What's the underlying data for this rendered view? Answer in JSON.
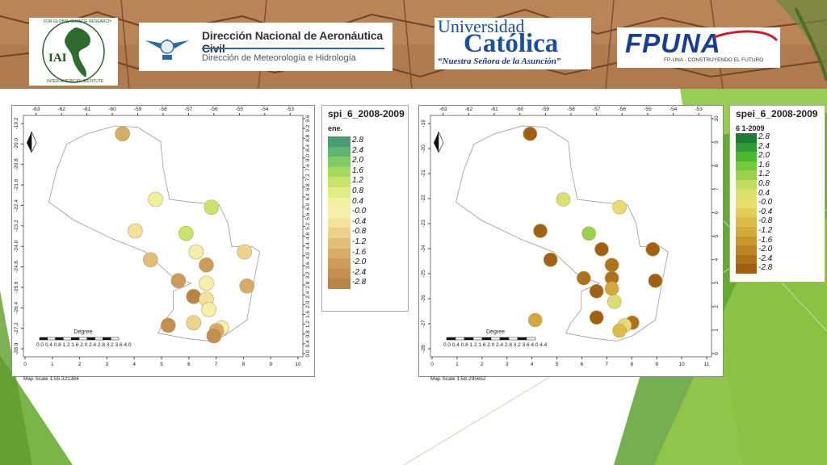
{
  "banner": {
    "logos": [
      {
        "name": "IAI",
        "lines": [
          "IAI",
          "FOR GLOBAL CHANGE RESEARCH",
          "INTER-AMERICAN INSTITUTE"
        ]
      },
      {
        "name": "DINAC"
      },
      {
        "name": "Universidad Católica"
      },
      {
        "name": "FP-UNA"
      }
    ],
    "dinac_title": "Dirección Nacional de Aeronáutica Civil",
    "dinac_subtitle": "Dirección de Meteorología e Hidrología",
    "uc_line1": "Universidad",
    "uc_line2": "Católica",
    "uc_line3": "“Nuestra Señora de la Asunción”",
    "fpuna_logo": "FPUNA",
    "fpuna_tagline": "FP-UNA - CONSTRUYENDO EL FUTURO"
  },
  "maps": [
    {
      "id": "spi",
      "x_ticks_top": [
        "-63",
        "-62",
        "-61",
        "-60",
        "-59",
        "-58",
        "-57",
        "-56",
        "-55",
        "-54",
        "-53"
      ],
      "x_ticks_bottom": [
        "0",
        "1",
        "2",
        "3",
        "4",
        "5",
        "6",
        "7",
        "8",
        "9",
        "10"
      ],
      "y_ticks_left": [
        "-19.2",
        "-20.0",
        "-20.8",
        "-21.6",
        "-22.4",
        "-23.2",
        "-24.0",
        "-24.8",
        "-25.6",
        "-26.4",
        "-27.2",
        "-28.0"
      ],
      "y_ticks_right": [
        "9.6",
        "9.2",
        "8.8",
        "8.4",
        "8.0",
        "7.6",
        "7.2",
        "6.8",
        "6.4",
        "6.0",
        "5.6",
        "5.2",
        "4.8",
        "4.4",
        "4.0",
        "3.6",
        "3.2",
        "2.8",
        "2.4",
        "2.0",
        "1.6",
        "1.2",
        "0.8",
        "0.4",
        "0.0"
      ],
      "scale_label": "Degree",
      "scale_ticks": "0.0 0.4 0.8 1.2 1.6 2.0 2.4 2.8 3.2 3.6 4.0",
      "map_scale": "Map Scale 1:55.321384",
      "stations": [
        {
          "lon": -59.7,
          "lat": -19.6,
          "v": -1.8
        },
        {
          "lon": -58.4,
          "lat": -22.1,
          "v": 0.2
        },
        {
          "lon": -56.2,
          "lat": -22.4,
          "v": 1.0
        },
        {
          "lon": -59.2,
          "lat": -23.3,
          "v": -0.5
        },
        {
          "lon": -57.2,
          "lat": -23.4,
          "v": 1.4
        },
        {
          "lon": -56.8,
          "lat": -24.1,
          "v": 0.1
        },
        {
          "lon": -58.6,
          "lat": -24.4,
          "v": -1.2
        },
        {
          "lon": -54.9,
          "lat": -24.1,
          "v": -1.0
        },
        {
          "lon": -56.4,
          "lat": -24.6,
          "v": -2.0
        },
        {
          "lon": -57.5,
          "lat": -25.2,
          "v": -1.9
        },
        {
          "lon": -56.4,
          "lat": -25.3,
          "v": -0.1
        },
        {
          "lon": -54.8,
          "lat": -25.4,
          "v": -1.7
        },
        {
          "lon": -56.9,
          "lat": -25.8,
          "v": -2.6
        },
        {
          "lon": -56.4,
          "lat": -25.9,
          "v": -0.6
        },
        {
          "lon": -56.3,
          "lat": -26.3,
          "v": 0.1
        },
        {
          "lon": -57.9,
          "lat": -26.9,
          "v": -2.2
        },
        {
          "lon": -56.9,
          "lat": -26.8,
          "v": -0.9
        },
        {
          "lon": -55.8,
          "lat": -27.0,
          "v": 0.0
        },
        {
          "lon": -56.0,
          "lat": -27.1,
          "v": -1.6
        },
        {
          "lon": -56.1,
          "lat": -27.3,
          "v": -2.3
        }
      ]
    },
    {
      "id": "spei",
      "x_ticks_top": [
        "-63",
        "-62",
        "-61",
        "-60",
        "-59",
        "-58",
        "-57",
        "-56",
        "-55",
        "-54",
        "-53"
      ],
      "x_ticks_bottom": [
        "0",
        "1",
        "2",
        "3",
        "4",
        "5",
        "6",
        "7",
        "8",
        "9",
        "10",
        "11"
      ],
      "y_ticks_left": [
        "-19",
        "-20",
        "-21",
        "-22",
        "-23",
        "-24",
        "-25",
        "-26",
        "-27",
        "-28"
      ],
      "y_ticks_right": [
        "10",
        "9",
        "8",
        "7",
        "6",
        "5",
        "4",
        "3",
        "2",
        "1",
        "0"
      ],
      "scale_label": "Degree",
      "scale_ticks": "0.0 0.4 0.8 1.2 1.6 2.0 2.4 2.8 3.2 3.6 4.0 4.4",
      "map_scale": "Map Scale 1:58.295652",
      "stations": [
        {
          "lon": -59.7,
          "lat": -19.6,
          "v": -2.8
        },
        {
          "lon": -58.4,
          "lat": -22.1,
          "v": 0.4
        },
        {
          "lon": -56.2,
          "lat": -22.4,
          "v": 0.0
        },
        {
          "lon": -59.3,
          "lat": -23.3,
          "v": -2.7
        },
        {
          "lon": -57.4,
          "lat": -23.4,
          "v": 1.4
        },
        {
          "lon": -56.9,
          "lat": -24.0,
          "v": -2.6
        },
        {
          "lon": -58.9,
          "lat": -24.4,
          "v": -2.6
        },
        {
          "lon": -54.9,
          "lat": -24.0,
          "v": -2.6
        },
        {
          "lon": -56.5,
          "lat": -24.6,
          "v": -2.3
        },
        {
          "lon": -57.6,
          "lat": -25.1,
          "v": -2.2
        },
        {
          "lon": -56.5,
          "lat": -25.1,
          "v": -2.3
        },
        {
          "lon": -54.8,
          "lat": -25.2,
          "v": -2.6
        },
        {
          "lon": -57.1,
          "lat": -25.6,
          "v": -2.6
        },
        {
          "lon": -56.5,
          "lat": -25.5,
          "v": -1.1
        },
        {
          "lon": -56.4,
          "lat": -26.0,
          "v": 0.2
        },
        {
          "lon": -59.5,
          "lat": -26.7,
          "v": -1.2
        },
        {
          "lon": -57.1,
          "lat": -26.6,
          "v": -2.6
        },
        {
          "lon": -55.7,
          "lat": -26.8,
          "v": -2.4
        },
        {
          "lon": -56.0,
          "lat": -26.9,
          "v": 0.0
        },
        {
          "lon": -56.2,
          "lat": -27.1,
          "v": -0.8
        }
      ]
    }
  ],
  "legends": [
    {
      "title": "spi_6_2008-2009",
      "subtitle": "ene.",
      "labels": [
        "2.8",
        "2.4",
        "2.0",
        "1.6",
        "1.2",
        "0.8",
        "0.4",
        "-0.0",
        "-0.4",
        "-0.8",
        "-1.2",
        "-1.6",
        "-2.0",
        "-2.4",
        "-2.8"
      ],
      "colors": [
        "#4a9c71",
        "#5fb56d",
        "#7fca62",
        "#a6d95f",
        "#c9e46a",
        "#e0ec86",
        "#f2f29e",
        "#f6eeab",
        "#f3e29c",
        "#ecd28a",
        "#e0be76",
        "#d6ad67",
        "#cc9d5a",
        "#c28f50",
        "#b98446"
      ]
    },
    {
      "title": "spei_6_2008-2009",
      "subtitle": "6 1-2009",
      "labels": [
        "2.8",
        "2.4",
        "2.0",
        "1.6",
        "1.2",
        "0.8",
        "0.4",
        "-0.0",
        "-0.4",
        "-0.8",
        "-1.2",
        "-1.6",
        "-2.0",
        "-2.4",
        "-2.8"
      ],
      "colors": [
        "#1f7d3a",
        "#2e9d34",
        "#4cb82e",
        "#72c93b",
        "#9bd24c",
        "#c2db5c",
        "#dde070",
        "#e7dc6e",
        "#e4ce5a",
        "#dcbc48",
        "#d2a93a",
        "#c7962c",
        "#bb8423",
        "#ae731a",
        "#a06212"
      ]
    }
  ]
}
